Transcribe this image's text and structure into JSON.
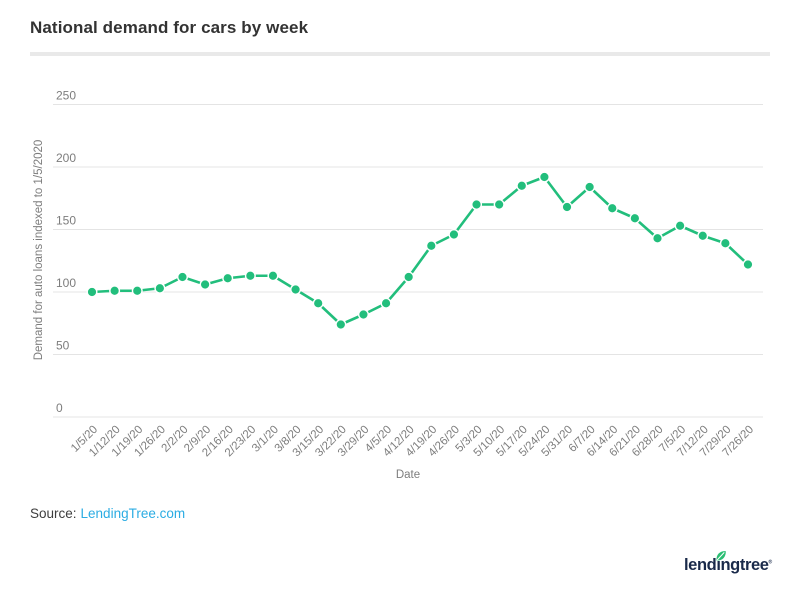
{
  "page": {
    "source_label": "Source:",
    "source_link": "LendingTree.com",
    "logo_text": "lendingtree",
    "logo_mark": "®"
  },
  "colors": {
    "accent_green": "#22be7c",
    "link_blue": "#2bace3",
    "logo_navy": "#1a2a4a",
    "gridline_gray": "#e4e4e4",
    "tick_gray": "#7d7d7d"
  },
  "chart_data": {
    "type": "line",
    "title": "National demand for cars by week",
    "xlabel": "Date",
    "ylabel": "Demand for auto loans indexed to 1/5/2020",
    "ylim": [
      0,
      250
    ],
    "yticks": [
      0,
      50,
      100,
      150,
      200,
      250
    ],
    "grid": true,
    "legend_position": "none",
    "series_color": "#22be7c",
    "categories": [
      "1/5/20",
      "1/12/20",
      "1/19/20",
      "1/26/20",
      "2/2/20",
      "2/9/20",
      "2/16/20",
      "2/23/20",
      "3/1/20",
      "3/8/20",
      "3/15/20",
      "3/22/20",
      "3/29/20",
      "4/5/20",
      "4/12/20",
      "4/19/20",
      "4/26/20",
      "5/3/20",
      "5/10/20",
      "5/17/20",
      "5/24/20",
      "5/31/20",
      "6/7/20",
      "6/14/20",
      "6/21/20",
      "6/28/20",
      "7/5/20",
      "7/12/20",
      "7/29/20",
      "7/26/20"
    ],
    "values": [
      100,
      101,
      101,
      103,
      112,
      106,
      111,
      113,
      113,
      102,
      91,
      74,
      82,
      91,
      112,
      137,
      146,
      170,
      170,
      185,
      192,
      168,
      184,
      167,
      159,
      143,
      153,
      145,
      139,
      122
    ]
  }
}
